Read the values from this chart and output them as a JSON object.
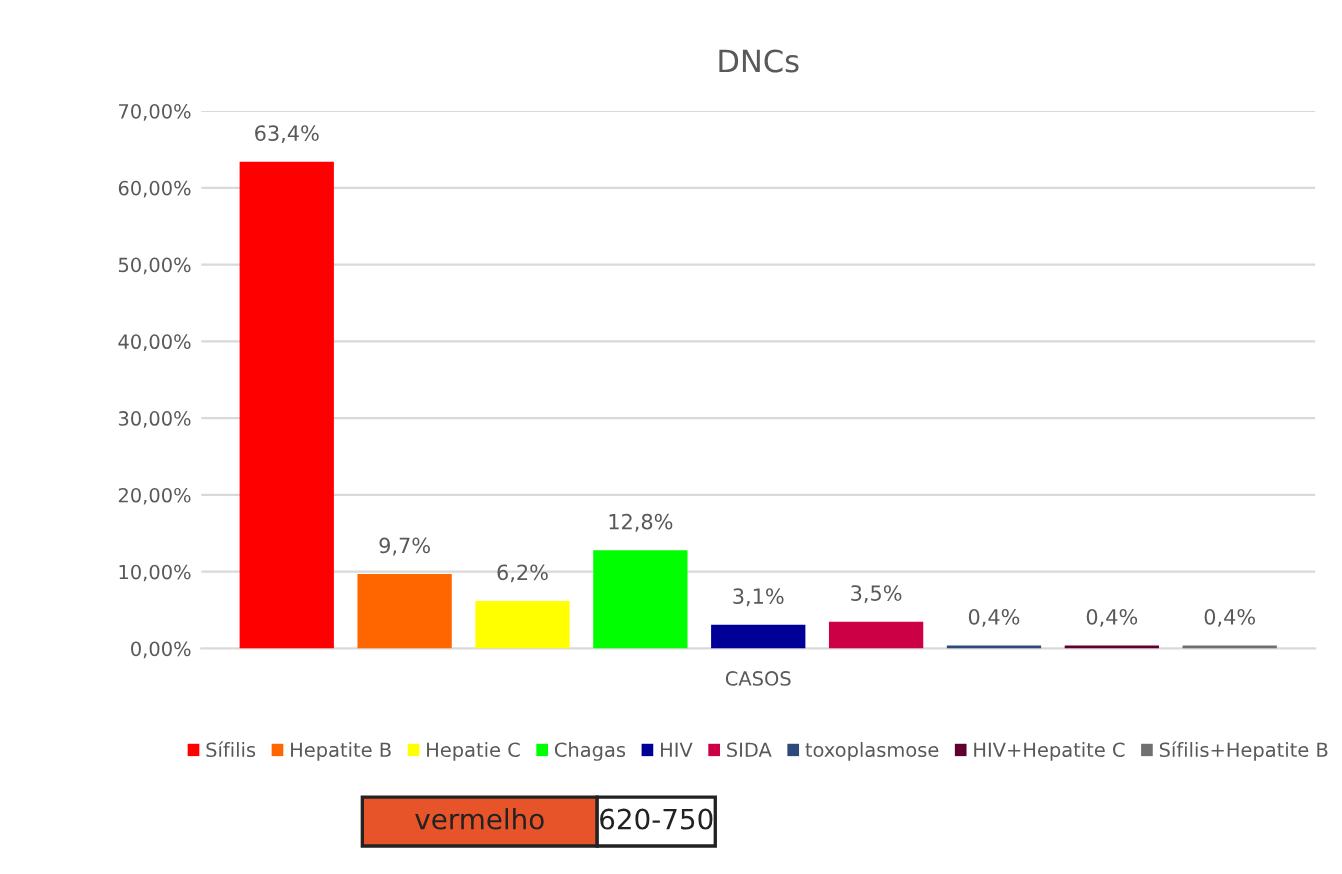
{
  "chart_data": {
    "type": "bar",
    "title": "DNCs",
    "categories": [
      "CASOS"
    ],
    "series": [
      {
        "name": "Sífilis",
        "color": "#ff0000",
        "values": [
          63.4
        ],
        "value_labels": [
          "63,4%"
        ]
      },
      {
        "name": "Hepatite B",
        "color": "#ff6600",
        "values": [
          9.7
        ],
        "value_labels": [
          "9,7%"
        ]
      },
      {
        "name": "Hepatie C",
        "color": "#ffff00",
        "values": [
          6.2
        ],
        "value_labels": [
          "6,2%"
        ]
      },
      {
        "name": "Chagas",
        "color": "#00ff00",
        "values": [
          12.8
        ],
        "value_labels": [
          "12,8%"
        ]
      },
      {
        "name": "HIV",
        "color": "#000099",
        "values": [
          3.1
        ],
        "value_labels": [
          "3,1%"
        ]
      },
      {
        "name": "SIDA",
        "color": "#cc0044",
        "values": [
          3.5
        ],
        "value_labels": [
          "3,5%"
        ]
      },
      {
        "name": "toxoplasmose",
        "color": "#2e4a7d",
        "values": [
          0.4
        ],
        "value_labels": [
          "0,4%"
        ]
      },
      {
        "name": "HIV+Hepatite C",
        "color": "#600030",
        "values": [
          0.4
        ],
        "value_labels": [
          "0,4%"
        ]
      },
      {
        "name": "Sífilis+Hepatite B",
        "color": "#707070",
        "values": [
          0.4
        ],
        "value_labels": [
          "0,4%"
        ]
      }
    ],
    "ylim": [
      0,
      70
    ],
    "yticks": [
      {
        "value": 0,
        "label": "0,00%"
      },
      {
        "value": 10,
        "label": "10,00%"
      },
      {
        "value": 20,
        "label": "20,00%"
      },
      {
        "value": 30,
        "label": "30,00%"
      },
      {
        "value": 40,
        "label": "40,00%"
      },
      {
        "value": 50,
        "label": "50,00%"
      },
      {
        "value": 60,
        "label": "60,00%"
      },
      {
        "value": 70,
        "label": "70,00%"
      }
    ],
    "grid": "y",
    "legend": "bottom",
    "annotations": [
      "vermelho",
      "620-750"
    ]
  }
}
